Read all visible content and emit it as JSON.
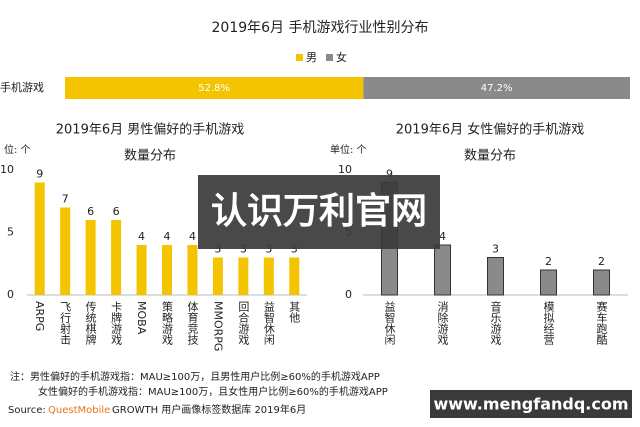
{
  "chart_data": [
    {
      "type": "bar",
      "orientation": "horizontal",
      "stacked": true,
      "title": "2019年6月 手机游戏行业性别分布",
      "categories": [
        "手机游戏"
      ],
      "xlim": [
        0,
        100
      ],
      "series": [
        {
          "name": "男",
          "color": "#f5c400",
          "values": [
            52.8
          ],
          "value_labels": [
            "52.8%"
          ]
        },
        {
          "name": "女",
          "color": "#8a8a8a",
          "values": [
            47.2
          ],
          "value_labels": [
            "47.2%"
          ]
        }
      ]
    },
    {
      "type": "bar",
      "title": "2019年6月 男性偏好的手机游戏",
      "subtitle": "数量分布",
      "y_label": "位: 个",
      "categories": [
        "ARPG",
        "飞行射击",
        "传统棋牌",
        "卡牌游戏",
        "MOBA",
        "策略游戏",
        "体育竞技",
        "MMORPG",
        "回合游戏",
        "益智休闲",
        "其他"
      ],
      "values": [
        9,
        7,
        6,
        6,
        4,
        4,
        4,
        3,
        3,
        3,
        3
      ],
      "color": "#f5c400",
      "ylim": [
        0,
        10
      ],
      "yticks": [
        0,
        5,
        10
      ]
    },
    {
      "type": "bar",
      "title": "2019年6月 女性偏好的手机游戏",
      "subtitle": "数量分布",
      "y_label": "单位: 个",
      "categories": [
        "益智休闲",
        "消除游戏",
        "音乐游戏",
        "模拟经营",
        "赛车跑酷"
      ],
      "values": [
        9,
        4,
        3,
        2,
        2
      ],
      "color": "#8a8a8a",
      "ylim": [
        0,
        10
      ],
      "yticks": [
        0,
        5,
        10
      ]
    }
  ],
  "notes": [
    "注：男性偏好的手机游戏指：MAU≥100万，且男性用户比例≥60%的手机游戏APP",
    "女性偏好的手机游戏指：MAU≥100万，且女性用户比例≥60%的手机游戏APP"
  ],
  "source": {
    "label": "Source:",
    "brand": "QuestMobile",
    "text": "GROWTH 用户画像标签数据库 2019年6月"
  },
  "overlay": {
    "banner": "认识万利官网",
    "url": "www.mengfandq.com"
  }
}
